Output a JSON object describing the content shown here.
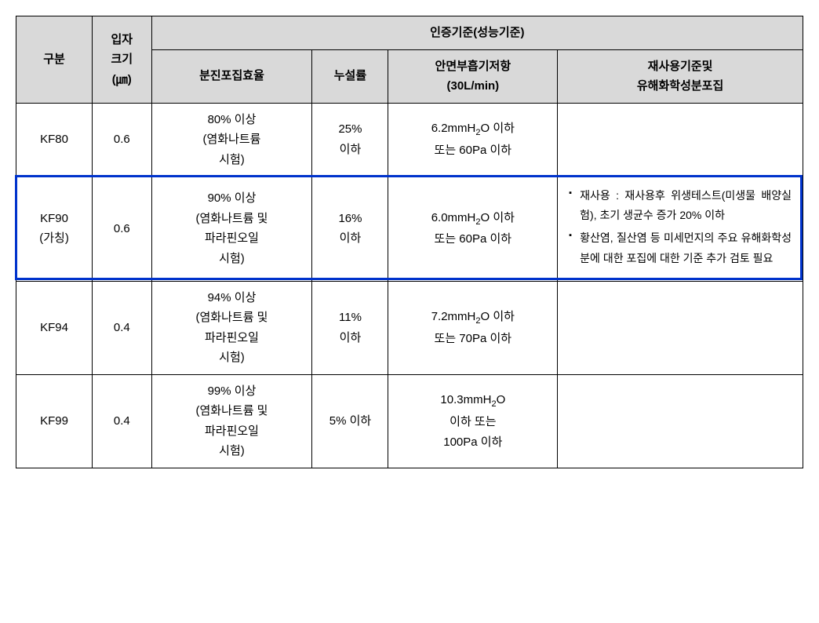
{
  "headers": {
    "category": "구분",
    "particle_size": "입자\n크기\n(㎛)",
    "cert_criteria": "인증기준(성능기준)",
    "dust_efficiency": "분진포집효율",
    "leak_rate": "누설률",
    "inhale_resistance": "안면부흡기저항\n(30L/min)",
    "reuse_criteria": "재사용기준및\n유해화학성분포집"
  },
  "rows": [
    {
      "category": "KF80",
      "particle": "0.6",
      "efficiency_pct": "80% 이상",
      "efficiency_test": "(염화나트륨\n시험)",
      "leak": "25%\n이하",
      "resistance_mm": "6.2mmH",
      "resistance_suffix": "O 이하",
      "resistance_pa": "또는 60Pa 이하",
      "reuse": ""
    },
    {
      "category": "KF90\n(가칭)",
      "particle": "0.6",
      "efficiency_pct": "90% 이상",
      "efficiency_test": "(염화나트륨 및\n파라핀오일\n시험)",
      "leak": "16%\n이하",
      "resistance_mm": "6.0mmH",
      "resistance_suffix": "O 이하",
      "resistance_pa": "또는 60Pa 이하",
      "reuse": {
        "item1_label": "재사용 :",
        "item1_text": "재사용후 위생테스트(미생물 배양실험), 초기 생균수 증가 20% 이하",
        "item2_text": "황산염, 질산염 등 미세먼지의 주요 유해화학성분에 대한 포집에 대한 기준 추가 검토 필요"
      }
    },
    {
      "category": "KF94",
      "particle": "0.4",
      "efficiency_pct": "94% 이상",
      "efficiency_test": "(염화나트륨 및\n파라핀오일\n시험)",
      "leak": "11%\n이하",
      "resistance_mm": "7.2mmH",
      "resistance_suffix": "O 이하",
      "resistance_pa": "또는 70Pa 이하",
      "reuse": ""
    },
    {
      "category": "KF99",
      "particle": "0.4",
      "efficiency_pct": "99% 이상",
      "efficiency_test": "(염화나트륨 및\n파라핀오일\n시험)",
      "leak": "5% 이하",
      "resistance_mm": "10.3mmH",
      "resistance_suffix": "O",
      "resistance_pa": "이하 또는\n100Pa 이하",
      "reuse": ""
    }
  ],
  "highlight": {
    "row_index": 1,
    "color": "#0033cc"
  }
}
